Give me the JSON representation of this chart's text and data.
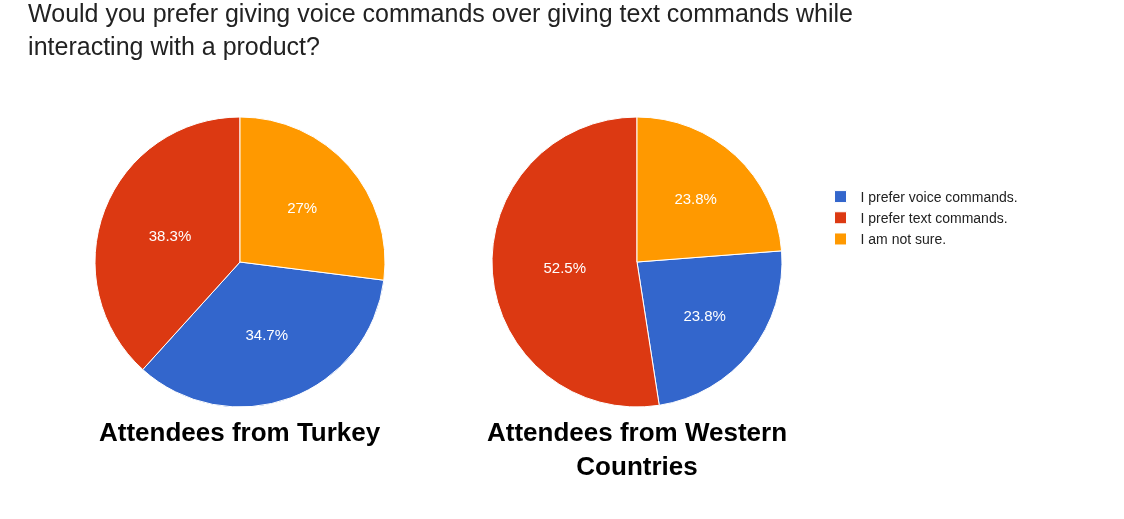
{
  "chart_data": [
    {
      "type": "pie",
      "title": "Would you prefer giving voice commands over giving text commands while interacting with a product?",
      "annotations": [
        "Attendees from Turkey"
      ],
      "categories": [
        "I prefer voice commands.",
        "I prefer text commands.",
        "I am not sure."
      ],
      "values": [
        34.7,
        38.3,
        27
      ],
      "value_labels": [
        "34.7%",
        "38.3%",
        "27%"
      ],
      "colors": [
        "#3366cc",
        "#dc3912",
        "#ff9900"
      ],
      "legend": "right"
    },
    {
      "type": "pie",
      "annotations": [
        "Attendees from Western Countries"
      ],
      "categories": [
        null,
        null,
        null
      ],
      "values": [
        23.8,
        52.5,
        23.8
      ],
      "value_labels": [
        "23.8%",
        "52.5%",
        "23.8%"
      ],
      "colors": [
        "#3366cc",
        "#dc3912",
        "#ff9900"
      ]
    }
  ]
}
